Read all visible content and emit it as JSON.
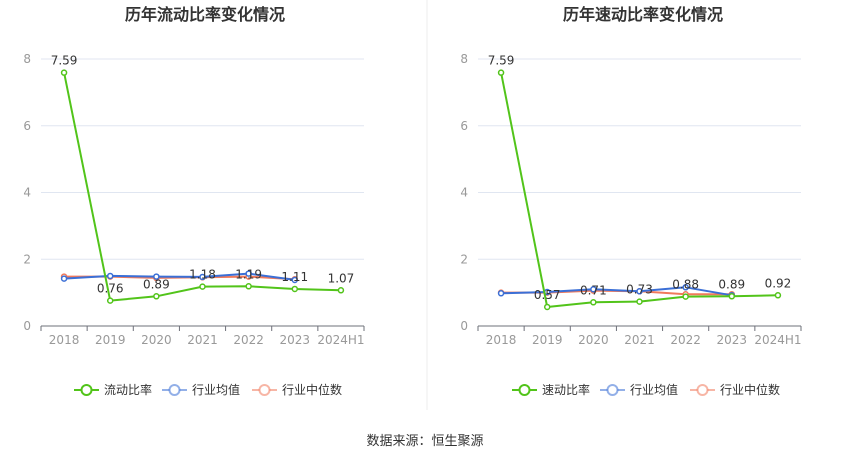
{
  "chart_data": [
    {
      "type": "line",
      "title": "历年流动比率变化情况",
      "categories": [
        "2018",
        "2019",
        "2020",
        "2021",
        "2022",
        "2023",
        "2024H1"
      ],
      "ylim": [
        0,
        8
      ],
      "yticks": [
        "0",
        "2",
        "4",
        "6",
        "8"
      ],
      "grid": true,
      "legend_position": "bottom",
      "series": [
        {
          "name": "流动比率",
          "color": "#52c41a",
          "values": [
            7.59,
            0.76,
            0.89,
            1.18,
            1.19,
            1.11,
            1.07
          ],
          "labels": [
            "7.59",
            "0.76",
            "0.89",
            "1.18",
            "1.19",
            "1.11",
            "1.07"
          ]
        },
        {
          "name": "行业均值",
          "color": "#3b6fd6",
          "values": [
            1.42,
            1.5,
            1.48,
            1.47,
            1.57,
            1.38,
            null
          ]
        },
        {
          "name": "行业中位数",
          "color": "#f07a5c",
          "values": [
            1.48,
            1.48,
            1.44,
            1.46,
            1.48,
            1.4,
            null
          ]
        }
      ]
    },
    {
      "type": "line",
      "title": "历年速动比率变化情况",
      "categories": [
        "2018",
        "2019",
        "2020",
        "2021",
        "2022",
        "2023",
        "2024H1"
      ],
      "ylim": [
        0,
        8
      ],
      "yticks": [
        "0",
        "2",
        "4",
        "6",
        "8"
      ],
      "grid": true,
      "legend_position": "bottom",
      "series": [
        {
          "name": "速动比率",
          "color": "#52c41a",
          "values": [
            7.59,
            0.57,
            0.71,
            0.73,
            0.88,
            0.89,
            0.92
          ],
          "labels": [
            "7.59",
            "0.57",
            "0.71",
            "0.73",
            "0.88",
            "0.89",
            "0.92"
          ]
        },
        {
          "name": "行业均值",
          "color": "#3b6fd6",
          "values": [
            0.98,
            1.02,
            1.1,
            1.04,
            1.16,
            0.92,
            null
          ]
        },
        {
          "name": "行业中位数",
          "color": "#f07a5c",
          "values": [
            1.0,
            1.0,
            1.06,
            1.04,
            0.95,
            0.95,
            null
          ]
        }
      ]
    }
  ],
  "footer": {
    "source": "数据来源：恒生聚源"
  }
}
